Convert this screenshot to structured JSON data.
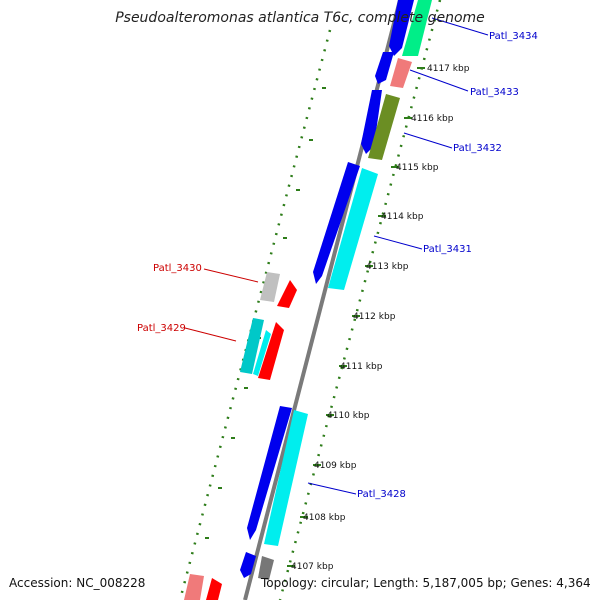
{
  "title": "Pseudoalteromonas atlantica T6c, complete genome",
  "accession": "Accession: NC_008228",
  "topology": "Topology: circular; Length: 5,187,005 bp; Genes: 4,364",
  "colors": {
    "backbone": "#7a7a7a",
    "tick_dots": "#2e7d1a",
    "blue_gene": "#0000ee",
    "cyan_gene": "#00eeee",
    "red_gene": "#ff0000",
    "pink_gene": "#f07a7a",
    "olive_gene": "#6b8e23",
    "green_gene": "#00ee88",
    "gray_gene": "#c0c0c0",
    "teal_gene": "#00c8c8",
    "dark_gray_gene": "#777777",
    "label_blue": "#0000cc",
    "label_red": "#cc0000"
  },
  "ticks": [
    {
      "id": "t4117",
      "label": "4117 kbp"
    },
    {
      "id": "t4116",
      "label": "4116 kbp"
    },
    {
      "id": "t4115",
      "label": "4115 kbp"
    },
    {
      "id": "t4114",
      "label": "4114 kbp"
    },
    {
      "id": "t4113",
      "label": "4113 kbp"
    },
    {
      "id": "t4112",
      "label": "4112 kbp"
    },
    {
      "id": "t4111",
      "label": "4111 kbp"
    },
    {
      "id": "t4110",
      "label": "4110 kbp"
    },
    {
      "id": "t4109",
      "label": "4109 kbp"
    },
    {
      "id": "t4108",
      "label": "4108 kbp"
    },
    {
      "id": "t4107",
      "label": "4107 kbp"
    }
  ],
  "gene_labels": [
    {
      "id": "patl_3434",
      "text": "Patl_3434",
      "color": "label_blue"
    },
    {
      "id": "patl_3433",
      "text": "Patl_3433",
      "color": "label_blue"
    },
    {
      "id": "patl_3432",
      "text": "Patl_3432",
      "color": "label_blue"
    },
    {
      "id": "patl_3431",
      "text": "Patl_3431",
      "color": "label_blue"
    },
    {
      "id": "patl_3430",
      "text": "Patl_3430",
      "color": "label_red"
    },
    {
      "id": "patl_3429",
      "text": "Patl_3429",
      "color": "label_red"
    },
    {
      "id": "patl_3428",
      "text": "Patl_3428",
      "color": "label_blue"
    }
  ]
}
